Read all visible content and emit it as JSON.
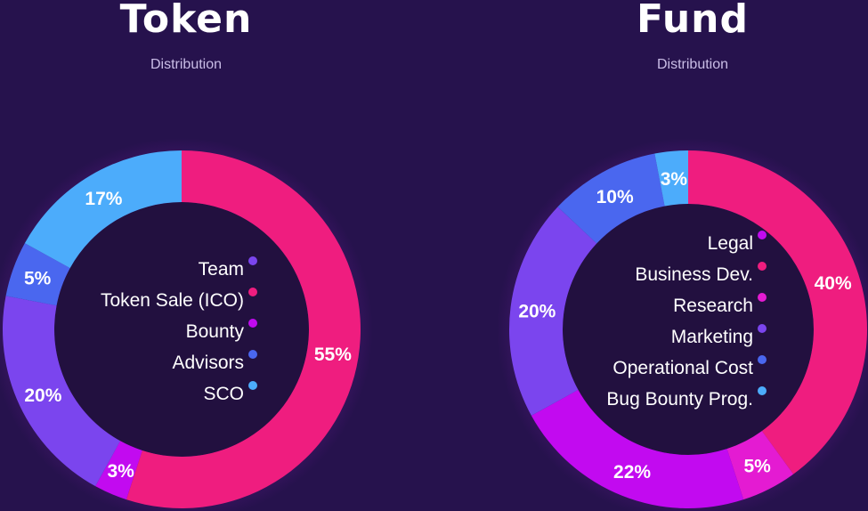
{
  "charts": [
    {
      "title": "Token",
      "subtitle": "Distribution",
      "chart_data": {
        "type": "pie",
        "style": "donut",
        "slices": [
          {
            "label": "55%",
            "value": 55,
            "color": "#ef1d7f"
          },
          {
            "label": "3%",
            "value": 3,
            "color": "#c20af0"
          },
          {
            "label": "20%",
            "value": 20,
            "color": "#7b45ee"
          },
          {
            "label": "5%",
            "value": 5,
            "color": "#4a67ef"
          },
          {
            "label": "17%",
            "value": 17,
            "color": "#4cacfb"
          }
        ],
        "legend": [
          {
            "label": "Team",
            "color": "#7b45ee"
          },
          {
            "label": "Token Sale (ICO)",
            "color": "#ef1d7f"
          },
          {
            "label": "Bounty",
            "color": "#c20af0"
          },
          {
            "label": "Advisors",
            "color": "#4a67ef"
          },
          {
            "label": "SCO",
            "color": "#4cacfb"
          }
        ],
        "legend_placement": "center"
      }
    },
    {
      "title": "Fund",
      "subtitle": "Distribution",
      "chart_data": {
        "type": "pie",
        "style": "donut",
        "slices": [
          {
            "label": "40%",
            "value": 40,
            "color": "#ef1d7f"
          },
          {
            "label": "5%",
            "value": 5,
            "color": "#e41bd2"
          },
          {
            "label": "22%",
            "value": 22,
            "color": "#c20af0"
          },
          {
            "label": "20%",
            "value": 20,
            "color": "#7b45ee"
          },
          {
            "label": "10%",
            "value": 10,
            "color": "#4a67ef"
          },
          {
            "label": "3%",
            "value": 3,
            "color": "#4cacfb"
          }
        ],
        "legend": [
          {
            "label": "Legal",
            "color": "#c20af0"
          },
          {
            "label": "Business Dev.",
            "color": "#ef1d7f"
          },
          {
            "label": "Research",
            "color": "#e41bd2"
          },
          {
            "label": "Marketing",
            "color": "#7b45ee"
          },
          {
            "label": "Operational Cost",
            "color": "#4a67ef"
          },
          {
            "label": "Bug Bounty Prog.",
            "color": "#4cacfb"
          }
        ],
        "legend_placement": "center"
      }
    }
  ]
}
